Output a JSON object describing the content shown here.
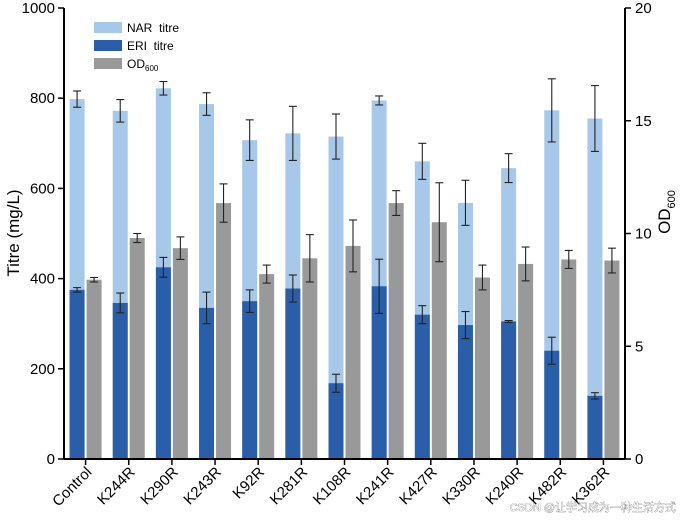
{
  "chart_data": {
    "type": "bar",
    "categories": [
      "Control",
      "K244R",
      "K290R",
      "K243R",
      "K92R",
      "K281R",
      "K108R",
      "K241R",
      "K427R",
      "K330R",
      "K240R",
      "K482R",
      "K362R"
    ],
    "series": [
      {
        "name": "NAR  titre",
        "axis": "left",
        "color": "#a7c8e8",
        "values": [
          798,
          772,
          822,
          787,
          707,
          722,
          715,
          795,
          660,
          568,
          645,
          773,
          755
        ],
        "errors": [
          18,
          25,
          15,
          25,
          45,
          60,
          50,
          10,
          40,
          50,
          32,
          70,
          73
        ]
      },
      {
        "name": "ERI  titre",
        "axis": "left",
        "color": "#2a5ea8",
        "values": [
          375,
          346,
          425,
          335,
          350,
          378,
          168,
          383,
          320,
          297,
          305,
          240,
          140
        ],
        "errors": [
          5,
          22,
          22,
          35,
          25,
          30,
          20,
          60,
          20,
          30,
          2,
          30,
          7
        ]
      },
      {
        "name": "OD",
        "name_sub": "600",
        "axis": "right",
        "color": "#999999",
        "values": [
          7.95,
          9.8,
          9.35,
          11.35,
          8.2,
          8.9,
          9.45,
          11.35,
          10.5,
          8.05,
          8.65,
          8.85,
          8.8
        ],
        "errors": [
          0.1,
          0.2,
          0.5,
          0.85,
          0.4,
          1.05,
          1.15,
          0.55,
          1.75,
          0.55,
          0.75,
          0.4,
          0.55
        ]
      }
    ],
    "y_left": {
      "label": "Titre (mg/L)",
      "ylim": [
        0,
        1000
      ],
      "ticks": [
        0,
        200,
        400,
        600,
        800,
        1000
      ]
    },
    "y_right": {
      "label": "OD",
      "label_sub": "600",
      "ylim": [
        0,
        20
      ],
      "ticks": [
        0,
        5,
        10,
        15,
        20
      ]
    },
    "legend_position": "top-left",
    "grid": false
  },
  "watermark": "CSDN @让学习成为一种生活方式"
}
